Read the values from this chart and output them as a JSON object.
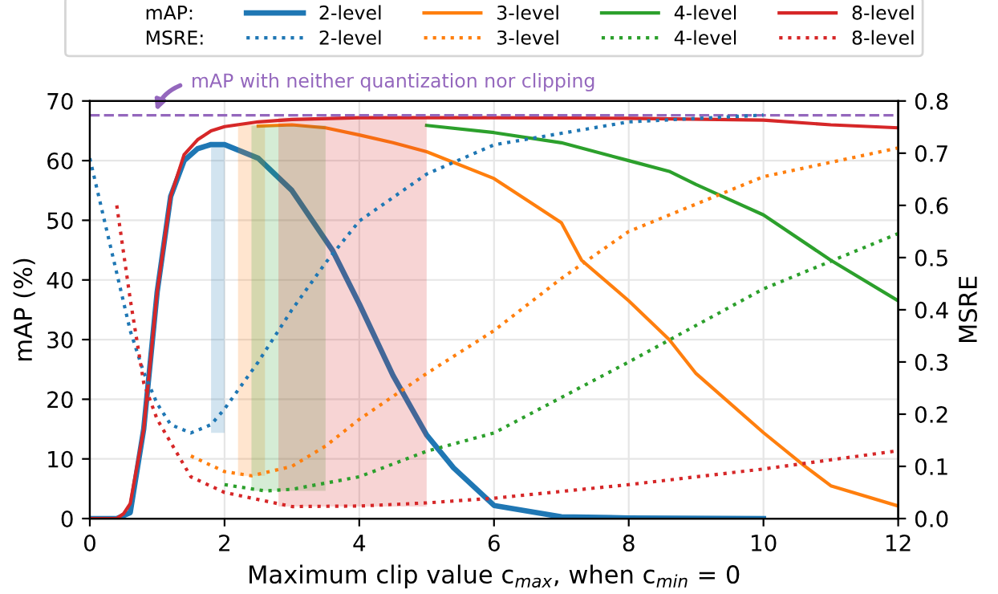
{
  "chart_data": {
    "type": "line",
    "xlabel": "Maximum clip value c$_{max}$, when c$_{min}$ = 0",
    "ylabel": "mAP (%)",
    "y2label": "MSRE",
    "annotations": [
      "mAP:",
      "MSRE:"
    ],
    "series": [
      {
        "name": "2-level",
        "color": "#1f77b4",
        "line_style": "solid",
        "x": [
          0,
          0.4,
          0.6,
          0.8,
          1.0,
          1.2,
          1.4,
          1.6,
          1.8,
          2.0,
          2.5,
          3.0,
          3.6,
          4.0,
          4.5,
          5.0,
          5.4,
          6.0,
          7.0,
          8.0,
          10.0
        ],
        "values": [
          0,
          0,
          1,
          15,
          38,
          54,
          60,
          62,
          62.7,
          62.7,
          60.4,
          55,
          45,
          36,
          24,
          14,
          8.5,
          2.2,
          0.3,
          0.1,
          0
        ]
      },
      {
        "name": "3-level",
        "color": "#ff7f0e",
        "line_style": "solid",
        "x": [
          2.5,
          3.0,
          3.5,
          4.0,
          4.5,
          5.0,
          6.0,
          7.0,
          7.3,
          8.0,
          8.6,
          9.0,
          10.0,
          10.6,
          11.0,
          12.0
        ],
        "values": [
          65.8,
          66,
          65.5,
          64.3,
          63,
          61.5,
          57,
          49.6,
          43.3,
          36.5,
          30,
          24.3,
          14.4,
          8.9,
          5.5,
          2.1
        ]
      },
      {
        "name": "4-level",
        "color": "#2ca02c",
        "line_style": "solid",
        "x": [
          5.0,
          6.0,
          7.0,
          8.0,
          8.6,
          9.0,
          10.0,
          11.0,
          12.0
        ],
        "values": [
          65.9,
          64.7,
          63,
          60,
          58.2,
          56,
          50.9,
          43.3,
          36.5
        ]
      },
      {
        "name": "8-level",
        "color": "#d62728",
        "line_style": "solid",
        "x": [
          0,
          0.4,
          0.5,
          0.6,
          0.8,
          1.0,
          1.2,
          1.4,
          1.6,
          1.8,
          2.0,
          2.5,
          3.0,
          4.0,
          6.0,
          8.0,
          10.0,
          11.0,
          12.0
        ],
        "values": [
          0,
          0,
          0.8,
          2.5,
          15,
          38,
          54,
          61,
          63.5,
          65,
          65.7,
          66.5,
          66.9,
          67.2,
          67.2,
          67.1,
          66.8,
          66,
          65.5
        ]
      },
      {
        "name": "2-level",
        "color": "#1f77b4",
        "line_style": "dotted",
        "axis": "y2",
        "x": [
          0,
          0.2,
          0.4,
          0.6,
          0.8,
          1.0,
          1.2,
          1.5,
          1.8,
          2.0,
          2.5,
          3.0,
          3.5,
          4.0,
          5.0,
          6.0,
          8.0,
          10.0
        ],
        "values": [
          0.69,
          0.58,
          0.47,
          0.36,
          0.28,
          0.22,
          0.18,
          0.164,
          0.18,
          0.21,
          0.3,
          0.4,
          0.49,
          0.57,
          0.66,
          0.716,
          0.76,
          0.773
        ]
      },
      {
        "name": "3-level",
        "color": "#ff7f0e",
        "line_style": "dotted",
        "axis": "y2",
        "x": [
          1.5,
          2.0,
          2.4,
          3.0,
          3.5,
          4.0,
          5.0,
          6.0,
          7.0,
          8.0,
          10.0,
          12.0
        ],
        "values": [
          0.12,
          0.09,
          0.082,
          0.1,
          0.139,
          0.19,
          0.278,
          0.36,
          0.46,
          0.55,
          0.655,
          0.71
        ]
      },
      {
        "name": "4-level",
        "color": "#2ca02c",
        "line_style": "dotted",
        "axis": "y2",
        "x": [
          2.0,
          2.6,
          3.0,
          4.0,
          5.0,
          6.0,
          8.0,
          10.0,
          12.0
        ],
        "values": [
          0.065,
          0.053,
          0.056,
          0.08,
          0.129,
          0.164,
          0.3,
          0.44,
          0.546
        ]
      },
      {
        "name": "8-level",
        "color": "#d62728",
        "line_style": "dotted",
        "axis": "y2",
        "x": [
          0.4,
          0.6,
          0.8,
          1.0,
          1.5,
          2.0,
          3.0,
          4.0,
          5.0,
          6.0,
          8.0,
          10.0,
          12.0
        ],
        "values": [
          0.6,
          0.42,
          0.26,
          0.19,
          0.08,
          0.05,
          0.023,
          0.024,
          0.03,
          0.039,
          0.065,
          0.095,
          0.13
        ]
      }
    ],
    "bands": [
      {
        "axis": "x",
        "from": 1.8,
        "to": 2.0,
        "color": "#1f77b4"
      },
      {
        "axis": "x",
        "from": 2.2,
        "to": 2.6,
        "color": "#ff7f0e"
      },
      {
        "axis": "x",
        "from": 2.4,
        "to": 3.5,
        "color": "#2ca02c"
      },
      {
        "axis": "x",
        "from": 2.8,
        "to": 5.0,
        "color": "#d62728"
      }
    ],
    "ref_lines": [
      {
        "axis": "y",
        "value": 67.6,
        "label": "mAP with neither quantization nor clipping",
        "color": "#9467bd",
        "line_style": "dashed"
      }
    ],
    "xlim": [
      0,
      12
    ],
    "xticks": [
      0,
      2,
      4,
      6,
      8,
      10,
      12
    ],
    "ylim": [
      0,
      70
    ],
    "yticks": [
      0,
      10,
      20,
      30,
      40,
      50,
      60,
      70
    ],
    "y2lim": [
      0,
      0.8
    ],
    "y2ticks": [
      {
        "value": 0,
        "label": "0.0"
      },
      0.1,
      0.2,
      0.3,
      0.4,
      0.5,
      0.6,
      0.7,
      0.8
    ],
    "grid": true,
    "legend": "top"
  }
}
